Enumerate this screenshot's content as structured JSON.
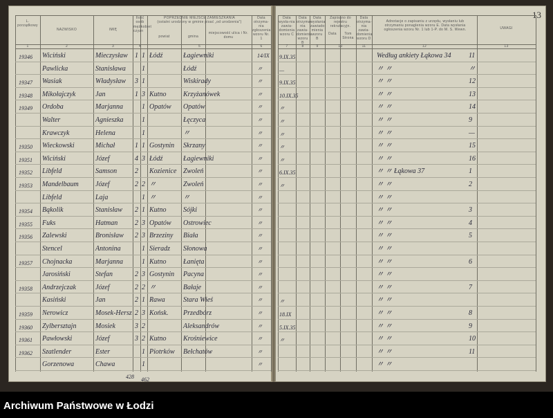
{
  "page_number": "13",
  "caption": "Archiwum Państwowe w Łodzi",
  "left_headers": {
    "no": "L. porządkowy",
    "surname": "NAZWISKO",
    "first_name": "IMIĘ",
    "count_group": "Ilość osób",
    "male": "męż-czyzn",
    "female": "kobiet",
    "prev_residence": "POPRZEDNIE MIEJSCE ZAMIESZKANIA",
    "prev_residence_sub": "(ostatni urodzony w gminie pisać „od urodzenia”)",
    "district": "powiat",
    "commune": "gmina",
    "locality": "miejscowość ulica i Nr. domu",
    "date_form1": "Data otrzyma-nia zgłoszenia wzoru Nr. 1"
  },
  "right_headers": {
    "date_c": "Data wysła-nia zawia-domienia wzoru C",
    "col8": "Data otrzyma-nia zawia-domienia wzoru B",
    "date_b": "Data wysłania zawiado-mienia wzoru B",
    "army": "Zapisano do rejestru rekrutacyjn.",
    "army_date": "Data",
    "army_volume": "Tom Strona",
    "date_d": "Data otrzyma-nia zawia-domienia wzoru D",
    "notes12": "Adnotacje o zapisaniu z urzędu, wysłaniu lub otrzymaniu ponaglenia wzoru E. Data wysłania ogłoszenia wzoru Nr. 1 lub 1-P. do M. S. Wewn.",
    "remarks": "UWAGI"
  },
  "col_numbers_left": [
    "1",
    "2",
    "3",
    "4",
    "5",
    "6"
  ],
  "col_numbers_right": [
    "7",
    "8",
    "9",
    "10",
    "11",
    "12",
    "13"
  ],
  "rows": [
    {
      "no": "19346",
      "surname": "Wiciński",
      "name": "Mieczysław",
      "m": "1",
      "k": "1",
      "district": "Łódź",
      "commune": "Łagiewniki",
      "date": "14/IX",
      "date_c": "9.IX.35",
      "note": "Według ankiety   Łąkowa 34",
      "ref": "11"
    },
    {
      "no": "",
      "surname": "Pawlicka",
      "name": "Stanisława",
      "m": "",
      "k": "1",
      "district": "",
      "commune": "Łódź",
      "date": "〃",
      "date_c": "—",
      "note": "〃   〃",
      "ref": "〃"
    },
    {
      "no": "19347",
      "surname": "Wasiak",
      "name": "Władysław",
      "m": "3",
      "k": "1",
      "district": "",
      "commune": "Wiskirady",
      "date": "〃",
      "date_c": "9.IX.35",
      "note": "〃   〃",
      "ref": "12"
    },
    {
      "no": "19348",
      "surname": "Mikołajczyk",
      "name": "Jan",
      "m": "1",
      "k": "3",
      "district": "Kutno",
      "commune": "Krzyżanówek",
      "date": "〃",
      "date_c": "10.IX.35",
      "note": "〃   〃",
      "ref": "13"
    },
    {
      "no": "19349",
      "surname": "Ordoba",
      "name": "Marjanna",
      "m": "",
      "k": "1",
      "district": "Opatów",
      "commune": "Opatów",
      "date": "〃",
      "date_c": "〃",
      "note": "〃   〃",
      "ref": "14"
    },
    {
      "no": "",
      "surname": "Walter",
      "name": "Agnieszka",
      "m": "",
      "k": "1",
      "district": "",
      "commune": "Łęczyca",
      "date": "〃",
      "date_c": "〃",
      "note": "〃   〃",
      "ref": "9"
    },
    {
      "no": "",
      "surname": "Krawczyk",
      "name": "Helena",
      "m": "",
      "k": "1",
      "district": "",
      "commune": "〃",
      "date": "〃",
      "date_c": "〃",
      "note": "〃   〃",
      "ref": "—"
    },
    {
      "no": "19350",
      "surname": "Wieckowski",
      "name": "Michał",
      "m": "1",
      "k": "1",
      "district": "Gostynin",
      "commune": "Skrzany",
      "date": "〃",
      "date_c": "〃",
      "note": "〃   〃",
      "ref": "15"
    },
    {
      "no": "19351",
      "surname": "Wiciński",
      "name": "Józef",
      "m": "4",
      "k": "3",
      "district": "Łódź",
      "commune": "Łagiewniki",
      "date": "〃",
      "date_c": "〃",
      "note": "〃   〃",
      "ref": "16"
    },
    {
      "no": "19352",
      "surname": "Libfeld",
      "name": "Samson",
      "m": "2",
      "k": "",
      "district": "Kozienice",
      "commune": "Zwoleń",
      "date": "〃",
      "date_c": "6.IX.35",
      "note": "〃   〃   Łąkowa 37",
      "ref": "1"
    },
    {
      "no": "19353",
      "surname": "Mandelbaum",
      "name": "Józef",
      "m": "2",
      "k": "2",
      "district": "〃",
      "commune": "Zwoleń",
      "date": "〃",
      "date_c": "〃",
      "note": "〃   〃",
      "ref": "2"
    },
    {
      "no": "",
      "surname": "Libfeld",
      "name": "Laja",
      "m": "",
      "k": "1",
      "district": "〃",
      "commune": "〃",
      "date": "〃",
      "date_c": "",
      "note": "〃   〃",
      "ref": ""
    },
    {
      "no": "19354",
      "surname": "Bąkolik",
      "name": "Stanisław",
      "m": "2",
      "k": "1",
      "district": "Kutno",
      "commune": "Sójki",
      "date": "〃",
      "date_c": "",
      "note": "〃   〃",
      "ref": "3"
    },
    {
      "no": "19355",
      "surname": "Fuks",
      "name": "Hatman",
      "m": "2",
      "k": "3",
      "district": "Opatów",
      "commune": "Ostrowiec",
      "date": "〃",
      "date_c": "",
      "note": "〃   〃",
      "ref": "4"
    },
    {
      "no": "19356",
      "surname": "Zalewski",
      "name": "Bronisław",
      "m": "2",
      "k": "3",
      "district": "Brzeziny",
      "commune": "Biała",
      "date": "〃",
      "date_c": "",
      "note": "〃   〃",
      "ref": "5"
    },
    {
      "no": "",
      "surname": "Stencel",
      "name": "Antonina",
      "m": "",
      "k": "1",
      "district": "Sieradz",
      "commune": "Słonowa",
      "date": "〃",
      "date_c": "",
      "note": "〃   〃",
      "ref": ""
    },
    {
      "no": "19357",
      "surname": "Chojnacka",
      "name": "Marjanna",
      "m": "",
      "k": "1",
      "district": "Kutno",
      "commune": "Łanięta",
      "date": "〃",
      "date_c": "",
      "note": "〃   〃",
      "ref": "6"
    },
    {
      "no": "",
      "surname": "Jarosiński",
      "name": "Stefan",
      "m": "2",
      "k": "3",
      "district": "Gostynin",
      "commune": "Pacyna",
      "date": "〃",
      "date_c": "",
      "note": "〃   〃",
      "ref": ""
    },
    {
      "no": "19358",
      "surname": "Andrzejczak",
      "name": "Józef",
      "m": "2",
      "k": "2",
      "district": "〃",
      "commune": "Bałaje",
      "date": "〃",
      "date_c": "",
      "note": "〃   〃",
      "ref": "7"
    },
    {
      "no": "",
      "surname": "Kasiński",
      "name": "Jan",
      "m": "2",
      "k": "1",
      "district": "Rawa",
      "commune": "Stara Wieś",
      "date": "〃",
      "date_c": "〃",
      "note": "〃   〃",
      "ref": ""
    },
    {
      "no": "19359",
      "surname": "Nerowicz",
      "name": "Mosek-Hersz",
      "m": "2",
      "k": "3",
      "district": "Końsk.",
      "commune": "Przedbórz",
      "date": "〃",
      "date_c": "18.IX",
      "note": "〃   〃",
      "ref": "8"
    },
    {
      "no": "19360",
      "surname": "Zylbersztajn",
      "name": "Mosiek",
      "m": "3",
      "k": "2",
      "district": "",
      "commune": "Aleksandrów",
      "date": "〃",
      "date_c": "5.IX.35",
      "note": "〃   〃",
      "ref": "9"
    },
    {
      "no": "19361",
      "surname": "Pawłowski",
      "name": "Józef",
      "m": "3",
      "k": "2",
      "district": "Kutno",
      "commune": "Krośniewice",
      "date": "〃",
      "date_c": "〃",
      "note": "〃   〃",
      "ref": "10"
    },
    {
      "no": "19362",
      "surname": "Szatlender",
      "name": "Ester",
      "m": "",
      "k": "1",
      "district": "Piotrków",
      "commune": "Bełchatów",
      "date": "〃",
      "date_c": "",
      "note": "〃   〃",
      "ref": "11"
    },
    {
      "no": "",
      "surname": "Gorzenowa",
      "name": "Chawa",
      "m": "",
      "k": "1",
      "district": "",
      "commune": "",
      "date": "〃",
      "date_c": "",
      "note": "〃   〃",
      "ref": ""
    }
  ],
  "totals": {
    "m": "428",
    "k": "462"
  }
}
